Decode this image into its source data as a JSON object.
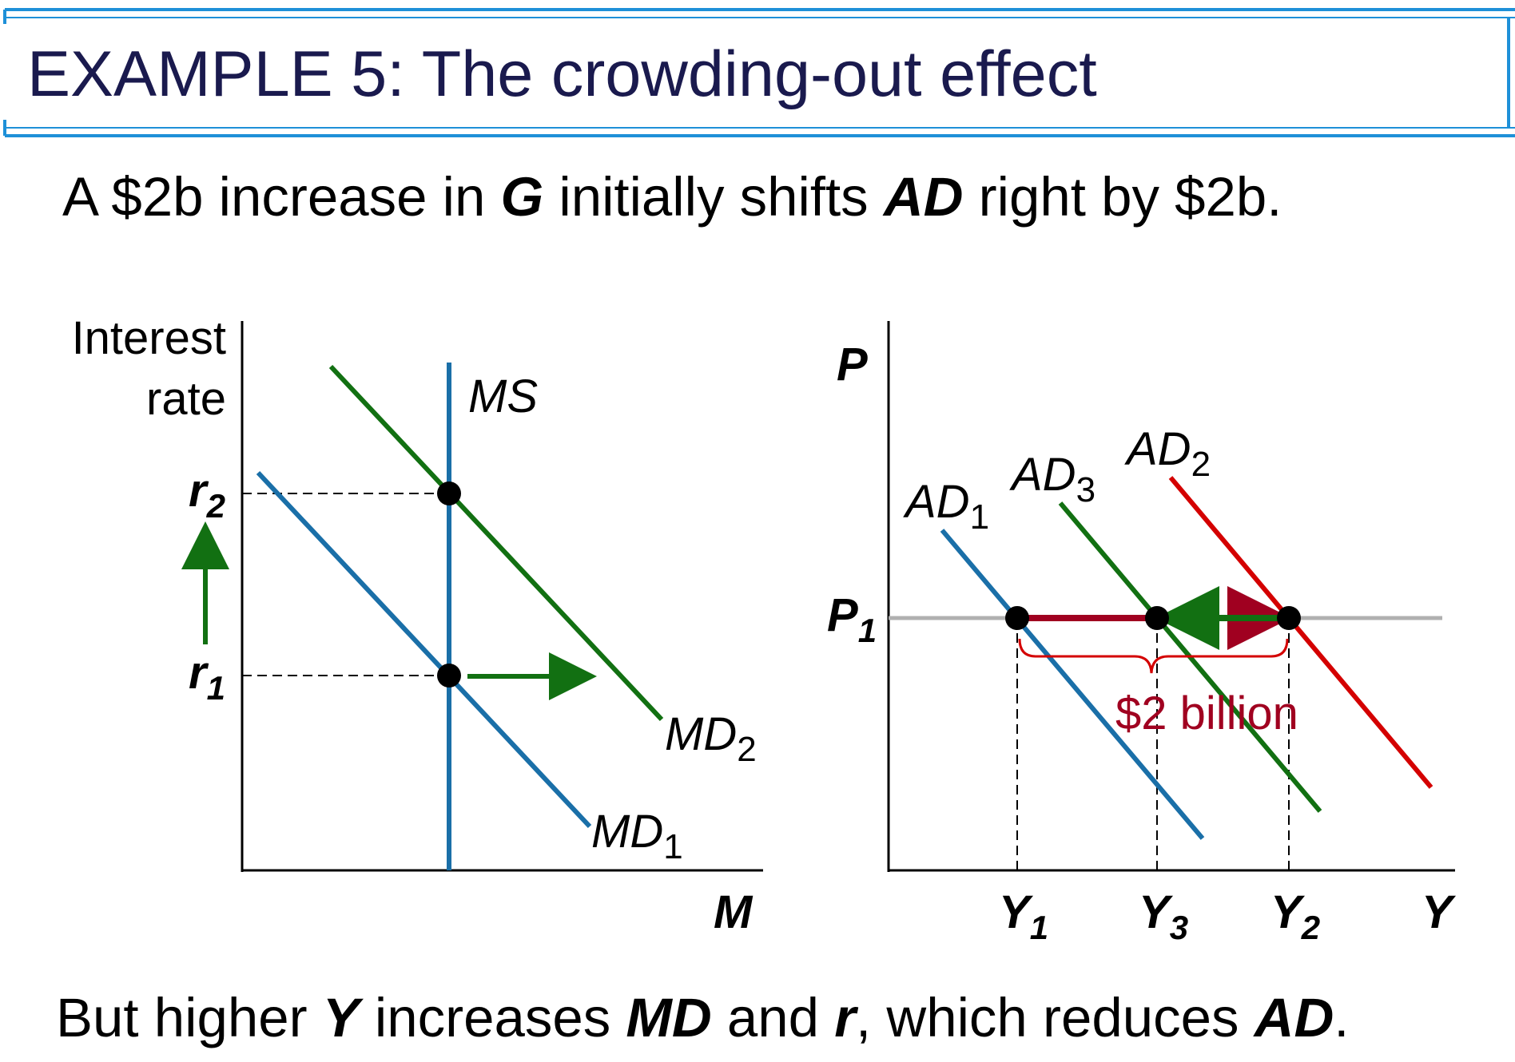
{
  "title": "EXAMPLE 5: The crowding-out effect",
  "subtitle": {
    "t1": "A $2b increase in ",
    "g": "G",
    "t2": " initially shifts ",
    "ad": "AD",
    "t3": " right by $2b."
  },
  "footer": {
    "t1": "But higher ",
    "y": "Y",
    "t2": " increases ",
    "md": "MD",
    "t3": " and ",
    "r": "r",
    "t4": ", which reduces ",
    "ad": "AD",
    "t5": "."
  },
  "money_market": {
    "y_axis_label_line1": "Interest",
    "y_axis_label_line2": "rate",
    "x_axis_label": "M",
    "r2": {
      "base": "r",
      "sub": "2"
    },
    "r1": {
      "base": "r",
      "sub": "1"
    },
    "ms_label": "MS",
    "md1": {
      "base": "MD",
      "sub": "1"
    },
    "md2": {
      "base": "MD",
      "sub": "2"
    }
  },
  "goods_market": {
    "y_axis_label": "P",
    "x_axis_label": "Y",
    "p1": {
      "base": "P",
      "sub": "1"
    },
    "ad1": {
      "base": "AD",
      "sub": "1"
    },
    "ad2": {
      "base": "AD",
      "sub": "2"
    },
    "ad3": {
      "base": "AD",
      "sub": "3"
    },
    "y1": {
      "base": "Y",
      "sub": "1"
    },
    "y2": {
      "base": "Y",
      "sub": "2"
    },
    "y3": {
      "base": "Y",
      "sub": "3"
    },
    "brace_label": "$2 billion"
  },
  "colors": {
    "title": "#1a1a4e",
    "frame": "#1e90d8",
    "blue_curve": "#1a6fa8",
    "green_curve": "#127012",
    "red_curve": "#d40000",
    "dark_red": "#a00020",
    "grey_line": "#b0b0b0"
  }
}
